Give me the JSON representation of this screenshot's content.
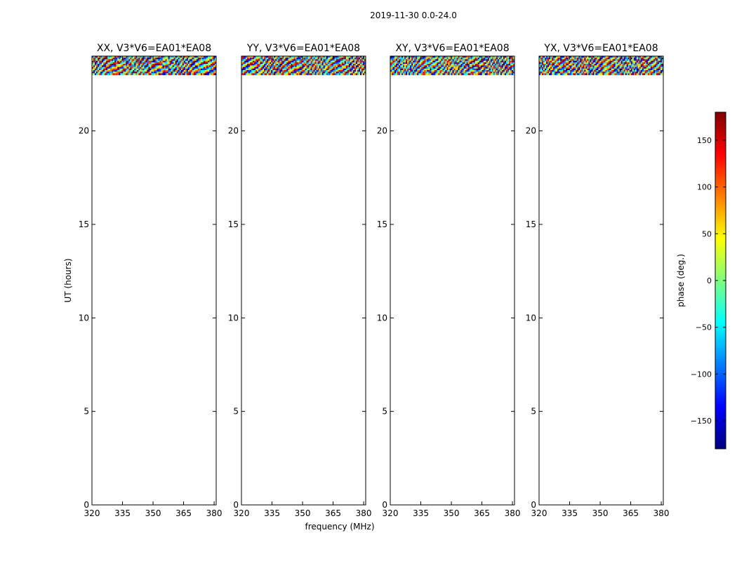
{
  "figure": {
    "suptitle": "2019-11-30 0.0-24.0",
    "xlabel": "frequency (MHz)",
    "ylabel": "UT (hours)"
  },
  "colorbar": {
    "label": "phase (deg.)",
    "range": [
      -180,
      180
    ],
    "ticks": [
      -150,
      -100,
      -50,
      0,
      50,
      100,
      150
    ],
    "colormap": "jet",
    "colors": [
      "#00007f",
      "#0000ff",
      "#007fff",
      "#00ffff",
      "#7fff7f",
      "#ffff00",
      "#ff7f00",
      "#ff0000",
      "#7f0000"
    ]
  },
  "chart_data": [
    {
      "type": "heatmap",
      "title": "XX, V3*V6=EA01*EA08",
      "xlabel": "",
      "ylabel": "UT (hours)",
      "xlim": [
        320,
        381
      ],
      "ylim": [
        0,
        24
      ],
      "xticks": [
        320,
        335,
        350,
        365,
        380
      ],
      "yticks": [
        0,
        5,
        10,
        15,
        20
      ],
      "data_extent": {
        "x": [
          320,
          381
        ],
        "y": [
          23.0,
          24.0
        ]
      },
      "value": "phase (deg.), fringing pattern spanning -180 to 180"
    },
    {
      "type": "heatmap",
      "title": "YY, V3*V6=EA01*EA08",
      "xlabel": "frequency (MHz)",
      "ylabel": "",
      "xlim": [
        320,
        381
      ],
      "ylim": [
        0,
        24
      ],
      "xticks": [
        320,
        335,
        350,
        365,
        380
      ],
      "yticks": [
        0,
        5,
        10,
        15,
        20
      ],
      "data_extent": {
        "x": [
          320,
          381
        ],
        "y": [
          23.0,
          24.0
        ]
      },
      "value": "phase (deg.), fringing pattern spanning -180 to 180"
    },
    {
      "type": "heatmap",
      "title": "XY, V3*V6=EA01*EA08",
      "xlabel": "",
      "ylabel": "",
      "xlim": [
        320,
        381
      ],
      "ylim": [
        0,
        24
      ],
      "xticks": [
        320,
        335,
        350,
        365,
        380
      ],
      "yticks": [
        0,
        5,
        10,
        15,
        20
      ],
      "data_extent": {
        "x": [
          320,
          381
        ],
        "y": [
          23.0,
          24.0
        ]
      },
      "value": "phase (deg.), fringing pattern spanning -180 to 180"
    },
    {
      "type": "heatmap",
      "title": "YX, V3*V6=EA01*EA08",
      "xlabel": "",
      "ylabel": "",
      "xlim": [
        320,
        381
      ],
      "ylim": [
        0,
        24
      ],
      "xticks": [
        320,
        335,
        350,
        365,
        380
      ],
      "yticks": [
        0,
        5,
        10,
        15,
        20
      ],
      "data_extent": {
        "x": [
          320,
          381
        ],
        "y": [
          23.0,
          24.0
        ]
      },
      "value": "phase (deg.), fringing pattern spanning -180 to 180"
    }
  ]
}
